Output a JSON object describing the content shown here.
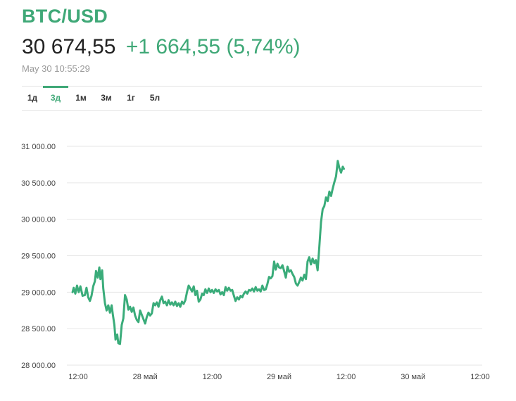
{
  "header": {
    "symbol": "BTC/USD",
    "price": "30 674,55",
    "change": "+1 664,55 (5,74%)",
    "timestamp": "May 30 10:55:29"
  },
  "tabs": [
    {
      "label": "1д",
      "active": false
    },
    {
      "label": "3д",
      "active": true
    },
    {
      "label": "1м",
      "active": false
    },
    {
      "label": "3м",
      "active": false
    },
    {
      "label": "1г",
      "active": false
    },
    {
      "label": "5л",
      "active": false
    }
  ],
  "colors": {
    "accent": "#3fa877",
    "grid": "#e6e6e6",
    "line": "#3aac7a"
  },
  "chart_data": {
    "type": "line",
    "ylim": [
      28000,
      31000
    ],
    "yticks": [
      28000,
      28500,
      29000,
      29500,
      30000,
      30500,
      31000
    ],
    "ytick_labels": [
      "28 000.00",
      "28 500.00",
      "29 000.00",
      "29 500.00",
      "30 000.00",
      "30 500.00",
      "31 000.00"
    ],
    "xlim": [
      11,
      84
    ],
    "xticks": [
      12,
      24,
      36,
      48,
      60,
      72,
      84
    ],
    "xtick_labels": [
      "12:00",
      "28 май",
      "12:00",
      "29 май",
      "12:00",
      "30 май",
      "12:00"
    ],
    "grid": true,
    "series": [
      {
        "values": [
          [
            11.0,
            29000
          ],
          [
            11.2,
            29060
          ],
          [
            11.5,
            28980
          ],
          [
            11.8,
            29090
          ],
          [
            12.1,
            29000
          ],
          [
            12.4,
            29080
          ],
          [
            12.8,
            28950
          ],
          [
            13.2,
            28960
          ],
          [
            13.5,
            29060
          ],
          [
            13.8,
            28930
          ],
          [
            14.1,
            28880
          ],
          [
            14.4,
            28950
          ],
          [
            14.7,
            29080
          ],
          [
            15.0,
            29150
          ],
          [
            15.2,
            29290
          ],
          [
            15.5,
            29200
          ],
          [
            15.8,
            29340
          ],
          [
            16.0,
            29180
          ],
          [
            16.3,
            29300
          ],
          [
            16.5,
            29050
          ],
          [
            16.8,
            28850
          ],
          [
            17.1,
            28750
          ],
          [
            17.4,
            28820
          ],
          [
            17.7,
            28720
          ],
          [
            18.0,
            28820
          ],
          [
            18.2,
            28700
          ],
          [
            18.5,
            28550
          ],
          [
            18.7,
            28350
          ],
          [
            19.0,
            28420
          ],
          [
            19.2,
            28300
          ],
          [
            19.5,
            28290
          ],
          [
            19.8,
            28550
          ],
          [
            20.1,
            28640
          ],
          [
            20.4,
            28960
          ],
          [
            20.7,
            28900
          ],
          [
            21.0,
            28760
          ],
          [
            21.3,
            28800
          ],
          [
            21.6,
            28730
          ],
          [
            21.9,
            28790
          ],
          [
            22.2,
            28680
          ],
          [
            22.5,
            28620
          ],
          [
            22.8,
            28590
          ],
          [
            23.1,
            28750
          ],
          [
            23.4,
            28690
          ],
          [
            23.7,
            28630
          ],
          [
            24.0,
            28570
          ],
          [
            24.3,
            28660
          ],
          [
            24.6,
            28720
          ],
          [
            24.9,
            28680
          ],
          [
            25.2,
            28710
          ],
          [
            25.5,
            28850
          ],
          [
            25.8,
            28820
          ],
          [
            26.1,
            28860
          ],
          [
            26.4,
            28800
          ],
          [
            26.7,
            28890
          ],
          [
            27.0,
            28940
          ],
          [
            27.3,
            28850
          ],
          [
            27.6,
            28870
          ],
          [
            27.9,
            28820
          ],
          [
            28.2,
            28890
          ],
          [
            28.5,
            28830
          ],
          [
            28.8,
            28860
          ],
          [
            29.1,
            28820
          ],
          [
            29.4,
            28870
          ],
          [
            29.7,
            28810
          ],
          [
            30.0,
            28850
          ],
          [
            30.3,
            28800
          ],
          [
            30.6,
            28870
          ],
          [
            30.9,
            28840
          ],
          [
            31.2,
            28890
          ],
          [
            31.5,
            29000
          ],
          [
            31.8,
            29090
          ],
          [
            32.1,
            29050
          ],
          [
            32.4,
            29010
          ],
          [
            32.7,
            29080
          ],
          [
            33.0,
            28960
          ],
          [
            33.3,
            29020
          ],
          [
            33.6,
            28870
          ],
          [
            33.9,
            28900
          ],
          [
            34.2,
            28980
          ],
          [
            34.5,
            28960
          ],
          [
            34.8,
            29040
          ],
          [
            35.1,
            28990
          ],
          [
            35.4,
            29050
          ],
          [
            35.7,
            29000
          ],
          [
            36.0,
            29030
          ],
          [
            36.3,
            28990
          ],
          [
            36.6,
            29040
          ],
          [
            36.9,
            29010
          ],
          [
            37.2,
            29030
          ],
          [
            37.5,
            28970
          ],
          [
            37.8,
            29000
          ],
          [
            38.1,
            28960
          ],
          [
            38.4,
            29070
          ],
          [
            38.7,
            29020
          ],
          [
            39.0,
            29060
          ],
          [
            39.3,
            29020
          ],
          [
            39.6,
            29030
          ],
          [
            39.9,
            28950
          ],
          [
            40.2,
            28880
          ],
          [
            40.5,
            28930
          ],
          [
            40.8,
            28900
          ],
          [
            41.1,
            28950
          ],
          [
            41.4,
            28930
          ],
          [
            41.7,
            28980
          ],
          [
            42.0,
            29010
          ],
          [
            42.3,
            28980
          ],
          [
            42.6,
            29030
          ],
          [
            42.9,
            29020
          ],
          [
            43.2,
            29050
          ],
          [
            43.5,
            29010
          ],
          [
            43.8,
            29070
          ],
          [
            44.1,
            29020
          ],
          [
            44.4,
            29040
          ],
          [
            44.7,
            29010
          ],
          [
            45.0,
            29090
          ],
          [
            45.3,
            29030
          ],
          [
            45.6,
            29040
          ],
          [
            45.9,
            29110
          ],
          [
            46.2,
            29210
          ],
          [
            46.5,
            29190
          ],
          [
            46.8,
            29220
          ],
          [
            47.1,
            29420
          ],
          [
            47.4,
            29310
          ],
          [
            47.7,
            29390
          ],
          [
            48.0,
            29340
          ],
          [
            48.3,
            29330
          ],
          [
            48.6,
            29370
          ],
          [
            48.9,
            29290
          ],
          [
            49.2,
            29200
          ],
          [
            49.5,
            29350
          ],
          [
            49.8,
            29280
          ],
          [
            50.1,
            29300
          ],
          [
            50.4,
            29250
          ],
          [
            50.7,
            29210
          ],
          [
            51.0,
            29120
          ],
          [
            51.3,
            29090
          ],
          [
            51.6,
            29140
          ],
          [
            51.9,
            29200
          ],
          [
            52.2,
            29160
          ],
          [
            52.5,
            29240
          ],
          [
            52.8,
            29180
          ],
          [
            53.1,
            29420
          ],
          [
            53.4,
            29480
          ],
          [
            53.7,
            29380
          ],
          [
            54.0,
            29460
          ],
          [
            54.3,
            29400
          ],
          [
            54.6,
            29440
          ],
          [
            54.9,
            29300
          ],
          [
            55.2,
            29620
          ],
          [
            55.5,
            29960
          ],
          [
            55.8,
            30140
          ],
          [
            56.1,
            30180
          ],
          [
            56.4,
            30300
          ],
          [
            56.7,
            30250
          ],
          [
            57.0,
            30380
          ],
          [
            57.3,
            30320
          ],
          [
            57.6,
            30420
          ],
          [
            57.9,
            30510
          ],
          [
            58.2,
            30590
          ],
          [
            58.5,
            30800
          ],
          [
            58.8,
            30700
          ],
          [
            59.1,
            30640
          ],
          [
            59.4,
            30720
          ],
          [
            59.6,
            30690
          ]
        ]
      }
    ]
  }
}
